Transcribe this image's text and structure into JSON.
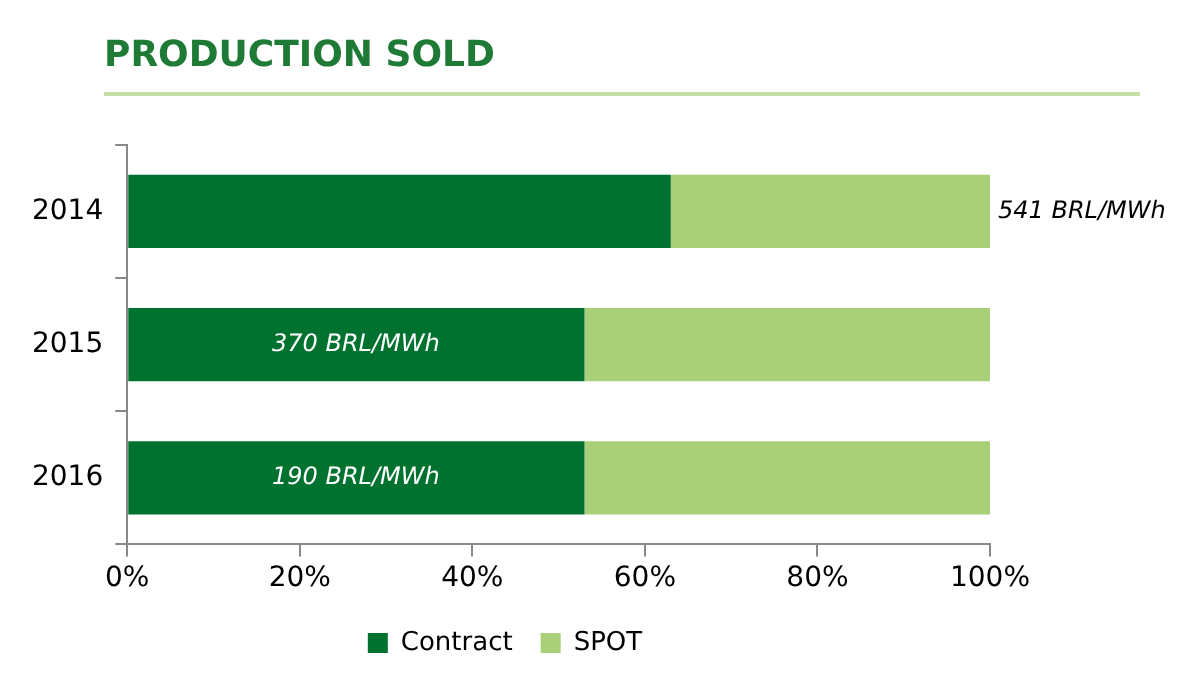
{
  "chart_data": {
    "type": "bar",
    "title": "PRODUCTION SOLD",
    "orientation": "horizontal",
    "stacked": true,
    "categories": [
      "2014",
      "2015",
      "2016"
    ],
    "series": [
      {
        "name": "Contract",
        "color": "#00722f",
        "values": [
          63,
          53,
          53
        ]
      },
      {
        "name": "SPOT",
        "color": "#a9cf78",
        "values": [
          37,
          47,
          47
        ]
      }
    ],
    "xlim": [
      0,
      100
    ],
    "xticks": [
      {
        "value": 0,
        "label": "0%"
      },
      {
        "value": 20,
        "label": "20%"
      },
      {
        "value": 40,
        "label": "40%"
      },
      {
        "value": 60,
        "label": "60%"
      },
      {
        "value": 80,
        "label": "80%"
      },
      {
        "value": 100,
        "label": "100%"
      }
    ],
    "annotations": [
      "541 BRL/MWh",
      "370 BRL/MWh",
      "190 BRL/MWh"
    ],
    "grid": false,
    "legend": "bottom"
  }
}
